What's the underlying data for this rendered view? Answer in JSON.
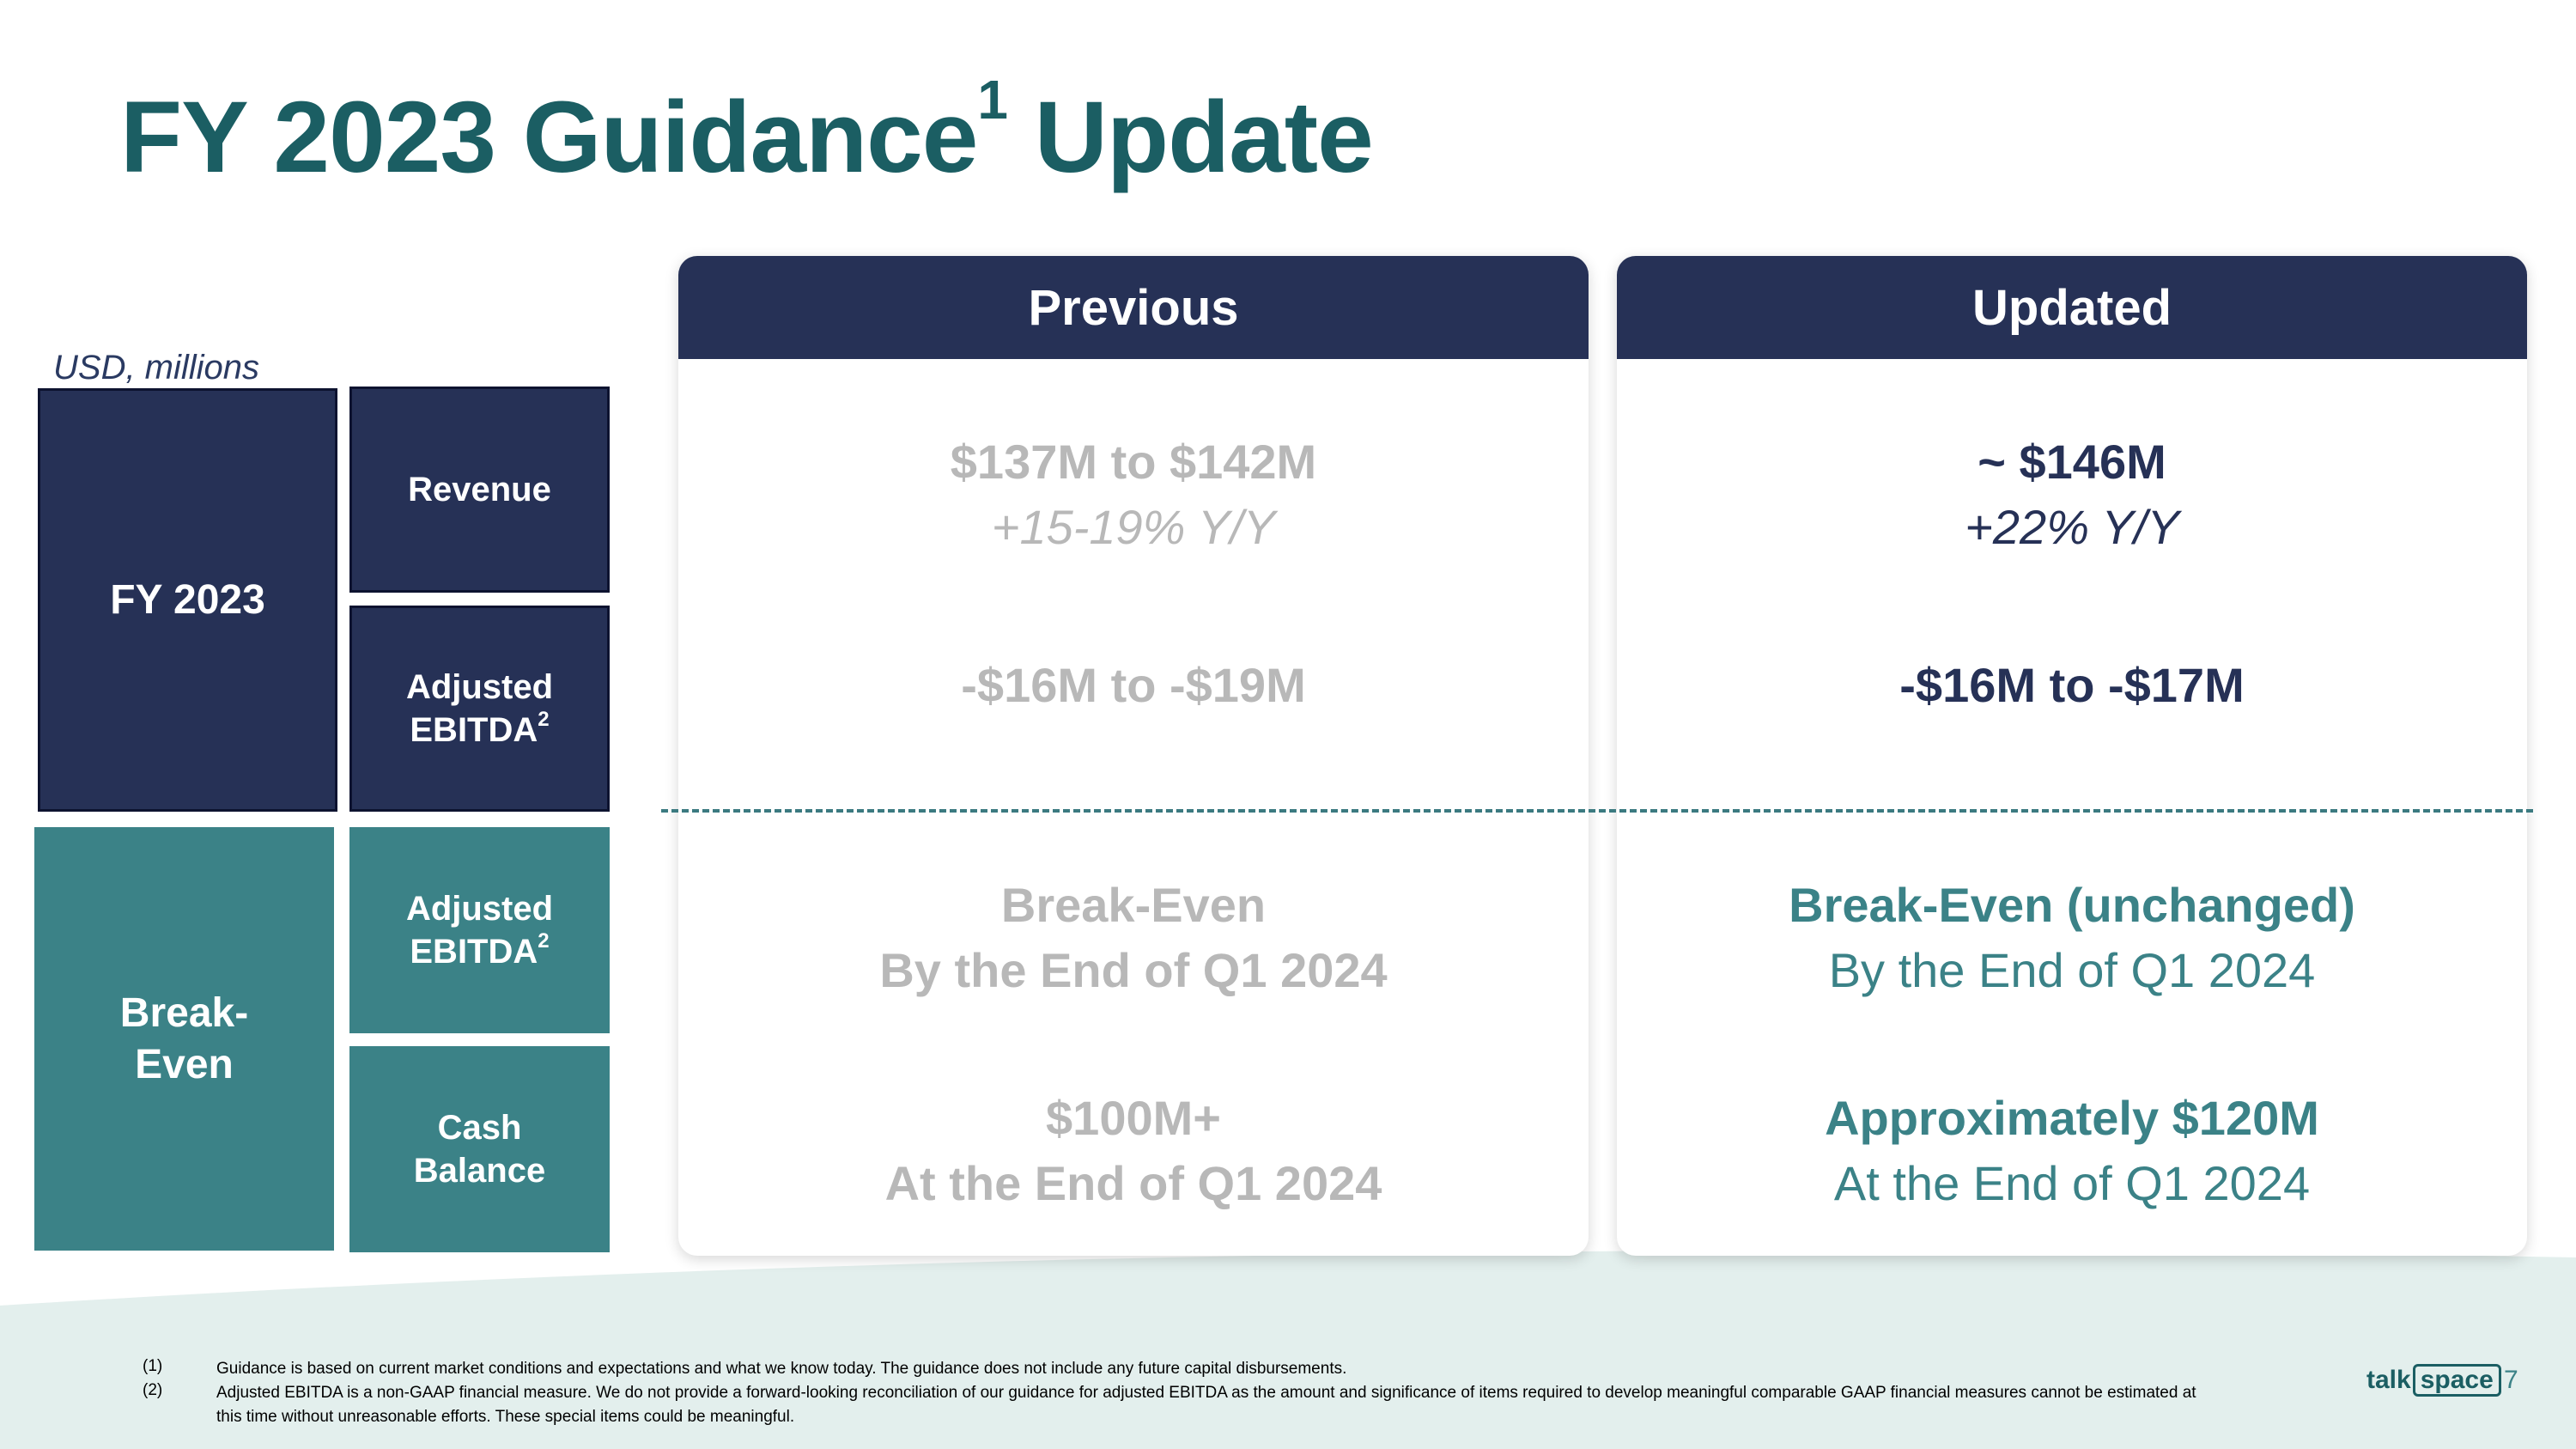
{
  "title": {
    "main": "FY 2023 Guidance",
    "sup": "1",
    "tail": " Update"
  },
  "unit_label": "USD, millions",
  "left_labels": {
    "fy2023": "FY 2023",
    "revenue": "Revenue",
    "adj_ebitda_1": "Adjusted EBITDA",
    "adj_ebitda_1_sup": "2",
    "break_even": "Break-Even",
    "adj_ebitda_2": "Adjusted EBITDA",
    "adj_ebitda_2_sup": "2",
    "cash_balance": "Cash Balance"
  },
  "previous": {
    "header": "Previous",
    "revenue_line1": "$137M to $142M",
    "revenue_line2": "+15-19% Y/Y",
    "ebitda": "-$16M to -$19M",
    "breakeven_line1": "Break-Even",
    "breakeven_line2": "By the End of Q1 2024",
    "cash_line1": "$100M+",
    "cash_line2": "At the End of Q1 2024"
  },
  "updated": {
    "header": "Updated",
    "revenue_line1": "~ $146M",
    "revenue_line2": "+22% Y/Y",
    "ebitda": "-$16M to -$17M",
    "breakeven_line1": "Break-Even (unchanged)",
    "breakeven_line2": "By the End of Q1 2024",
    "cash_line1": "Approximately $120M",
    "cash_line2": "At the End of Q1 2024"
  },
  "footnotes": [
    {
      "num": "(1)",
      "text": "Guidance is based on current market conditions and expectations and what we know today. The guidance does not include any future capital disbursements."
    },
    {
      "num": "(2)",
      "text": "Adjusted EBITDA is a non-GAAP financial measure. We do not provide a forward-looking reconciliation of our guidance for adjusted EBITDA as the amount and significance of items required to develop meaningful comparable GAAP financial measures cannot be estimated at this time without unreasonable efforts. These special items could be meaningful."
    }
  ],
  "logo": {
    "part1": "talk",
    "part2": "space"
  },
  "page_number": "7",
  "colors": {
    "navy": "#263156",
    "teal": "#3b8287",
    "title": "#1b5e63",
    "muted": "#b8b8b8"
  }
}
